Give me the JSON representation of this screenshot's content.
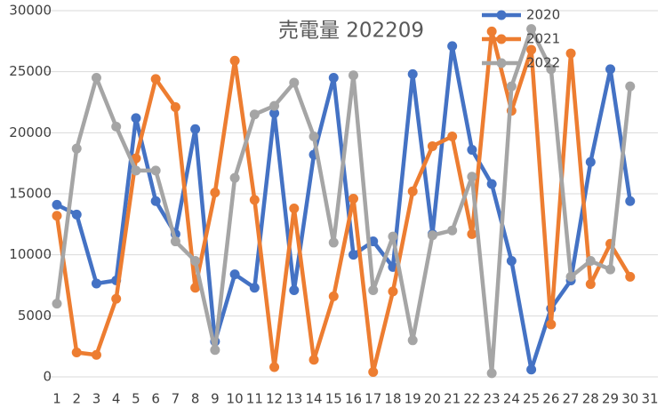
{
  "chart_data": {
    "type": "line",
    "title": "売電量 202209",
    "categories": [
      "1",
      "2",
      "3",
      "4",
      "5",
      "6",
      "7",
      "8",
      "9",
      "10",
      "11",
      "12",
      "13",
      "14",
      "15",
      "16",
      "17",
      "18",
      "19",
      "20",
      "21",
      "22",
      "23",
      "24",
      "25",
      "26",
      "27",
      "28",
      "29",
      "30",
      "31"
    ],
    "series": [
      {
        "name": "2020",
        "color": "#4472c4",
        "values": [
          14100,
          13300,
          7650,
          7900,
          21200,
          14400,
          11700,
          20300,
          2900,
          8400,
          7300,
          21600,
          7100,
          18200,
          24500,
          10000,
          11100,
          9000,
          24800,
          11700,
          27100,
          18600,
          15800,
          9500,
          600,
          5600,
          7900,
          17600,
          25200,
          14400,
          null
        ]
      },
      {
        "name": "2021",
        "color": "#ed7d31",
        "values": [
          13200,
          2000,
          1800,
          6400,
          17900,
          24400,
          22100,
          7300,
          15100,
          25900,
          14500,
          800,
          13800,
          1400,
          6600,
          14600,
          400,
          7000,
          15200,
          18900,
          19700,
          11700,
          28300,
          21800,
          26800,
          4300,
          26500,
          7600,
          10900,
          8200,
          null
        ]
      },
      {
        "name": "2022",
        "color": "#a5a5a5",
        "values": [
          6000,
          18700,
          24500,
          20500,
          16900,
          16900,
          11100,
          9500,
          2200,
          16300,
          21500,
          22200,
          24100,
          19700,
          11000,
          24700,
          7100,
          11500,
          3000,
          11600,
          12000,
          16400,
          300,
          23800,
          28500,
          25200,
          8200,
          9500,
          8800,
          23800,
          null
        ]
      }
    ],
    "ylim": [
      0,
      30000
    ],
    "yticks": [
      0,
      5000,
      10000,
      15000,
      20000,
      25000,
      30000
    ],
    "grid": true,
    "legend": "top-right"
  }
}
